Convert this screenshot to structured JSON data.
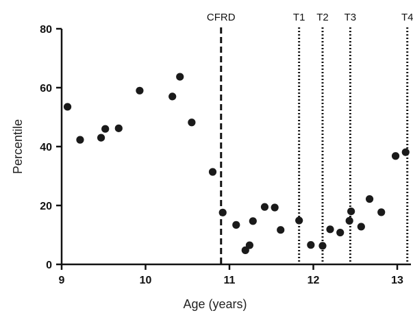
{
  "chart_data": {
    "type": "scatter",
    "title": "",
    "xlabel": "Age (years)",
    "ylabel": "Percentile",
    "xlim": [
      9,
      13.4
    ],
    "ylim": [
      0,
      80
    ],
    "x_ticks": [
      "9",
      "10",
      "11",
      "12",
      "13"
    ],
    "y_ticks": [
      "0",
      "20",
      "40",
      "60",
      "80"
    ],
    "grid": false,
    "legend": "none",
    "point_color": "#1a1a1a",
    "points": [
      {
        "x": 9.07,
        "y": 53.5
      },
      {
        "x": 9.22,
        "y": 42.3
      },
      {
        "x": 9.47,
        "y": 43.0
      },
      {
        "x": 9.52,
        "y": 46.0
      },
      {
        "x": 9.68,
        "y": 46.2
      },
      {
        "x": 9.93,
        "y": 59.0
      },
      {
        "x": 10.32,
        "y": 57.0
      },
      {
        "x": 10.41,
        "y": 63.7
      },
      {
        "x": 10.55,
        "y": 48.2
      },
      {
        "x": 10.8,
        "y": 31.4
      },
      {
        "x": 10.92,
        "y": 17.6
      },
      {
        "x": 11.08,
        "y": 13.4
      },
      {
        "x": 11.19,
        "y": 4.8
      },
      {
        "x": 11.24,
        "y": 6.5
      },
      {
        "x": 11.28,
        "y": 14.7
      },
      {
        "x": 11.42,
        "y": 19.5
      },
      {
        "x": 11.54,
        "y": 19.3
      },
      {
        "x": 11.61,
        "y": 11.7
      },
      {
        "x": 11.83,
        "y": 14.9
      },
      {
        "x": 11.97,
        "y": 6.6
      },
      {
        "x": 12.11,
        "y": 6.3
      },
      {
        "x": 12.2,
        "y": 11.9
      },
      {
        "x": 12.32,
        "y": 10.8
      },
      {
        "x": 12.43,
        "y": 14.8
      },
      {
        "x": 12.45,
        "y": 18.0
      },
      {
        "x": 12.57,
        "y": 12.8
      },
      {
        "x": 12.67,
        "y": 22.2
      },
      {
        "x": 12.81,
        "y": 17.7
      },
      {
        "x": 12.98,
        "y": 36.8
      },
      {
        "x": 13.1,
        "y": 38.1
      }
    ],
    "reference_lines": [
      {
        "label": "CFRD",
        "x": 10.9,
        "style": "dashed"
      },
      {
        "label": "T1",
        "x": 11.83,
        "style": "dotted"
      },
      {
        "label": "T2",
        "x": 12.11,
        "style": "dotted"
      },
      {
        "label": "T3",
        "x": 12.44,
        "style": "dotted"
      },
      {
        "label": "T4",
        "x": 13.12,
        "style": "dotted"
      }
    ]
  }
}
